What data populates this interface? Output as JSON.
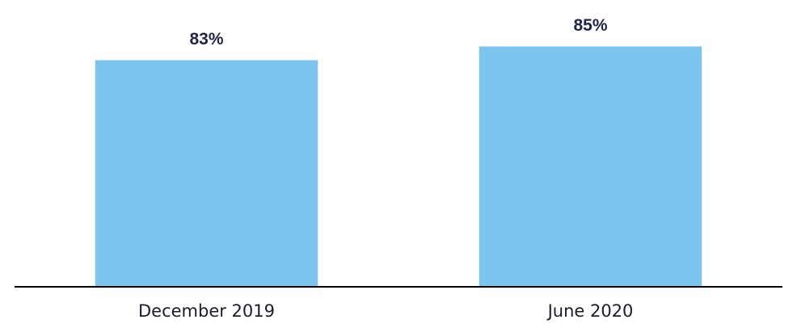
{
  "chart_data": {
    "type": "bar",
    "categories": [
      "December 2019",
      "June 2020"
    ],
    "values": [
      83,
      85
    ],
    "value_labels": [
      "83%",
      "85%"
    ],
    "color": "#7cc5ef",
    "ylim": [
      50,
      90
    ]
  }
}
